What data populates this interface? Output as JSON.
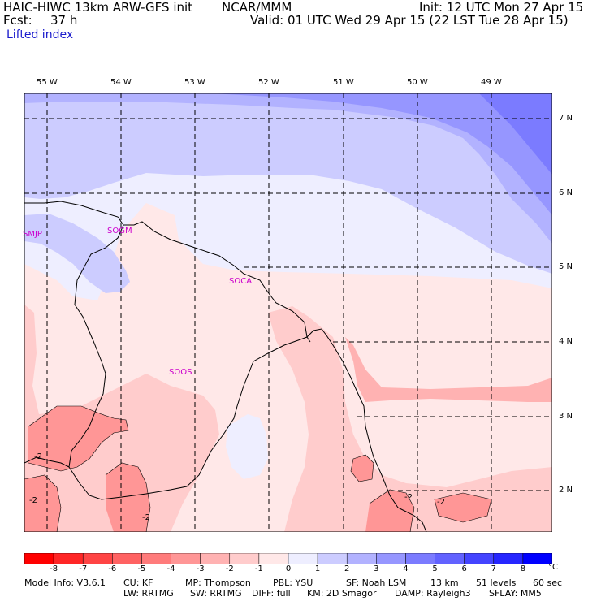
{
  "header": {
    "model": "HAIC-HIWC 13km ARW-GFS init",
    "org": "NCAR/MMM",
    "init": "Init: 12 UTC Mon 27 Apr 15",
    "fcst_label": "Fcst:",
    "fcst_value": "37 h",
    "valid": "Valid: 01 UTC Wed 29 Apr 15 (22 LST Tue 28 Apr 15)",
    "field": "Lifted index"
  },
  "longitude_labels": [
    "55 W",
    "54 W",
    "53 W",
    "52 W",
    "51 W",
    "50 W",
    "49 W"
  ],
  "latitude_labels": [
    "7 N",
    "6 N",
    "5 N",
    "4 N",
    "3 N",
    "2 N"
  ],
  "stations": [
    "SMJP",
    "SOGM",
    "SOCA",
    "SOOS"
  ],
  "contour_labels": [
    "-2",
    "-2",
    "-2",
    "-2",
    "-2"
  ],
  "colorbar": {
    "ticks": [
      "-8",
      "-7",
      "-6",
      "-5",
      "-4",
      "-3",
      "-2",
      "-1",
      "0",
      "1",
      "2",
      "3",
      "4",
      "5",
      "6",
      "7",
      "8"
    ],
    "unit": "°C",
    "colors": [
      "#ff0000",
      "#ff2626",
      "#ff4444",
      "#ff6262",
      "#ff7b7b",
      "#ff9696",
      "#ffb2b2",
      "#ffcccc",
      "#ffe8e8",
      "#eeeeff",
      "#ccccff",
      "#b2b2ff",
      "#9696ff",
      "#7b7bff",
      "#6262ff",
      "#4444ff",
      "#2626ff",
      "#0000ff"
    ]
  },
  "map_colors": {
    "li_pos1": "#eeeeff",
    "li_pos2": "#ccccff",
    "li_pos3": "#b2b2ff",
    "li_pos4": "#9696ff",
    "li_pos5": "#7b7bff",
    "li_neg0": "#ffe8e8",
    "li_neg1": "#ffcccc",
    "li_neg2": "#ffb2b2",
    "li_neg3": "#ff9696",
    "coast": "#000000",
    "station": "#cc00cc"
  },
  "footer": {
    "line1": [
      "Model Info: V3.6.1",
      "CU: KF",
      "MP: Thompson",
      "PBL: YSU",
      "SF: Noah LSM",
      "13 km",
      "51 levels",
      "60 sec"
    ],
    "line2": [
      "LW: RRTMG",
      "SW: RRTMG",
      "DIFF: full",
      "KM: 2D Smagor",
      "DAMP: Rayleigh3",
      "SFLAY: MM5"
    ]
  }
}
